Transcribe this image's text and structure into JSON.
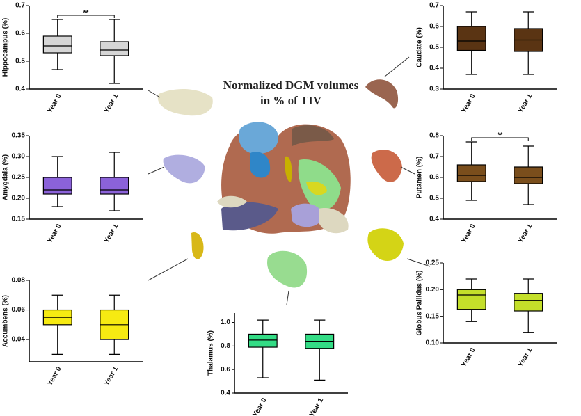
{
  "title": "Normalized DGM volumes in % of TIV",
  "chart_data": [
    {
      "type": "box",
      "y_label": "Hippocampus (%)",
      "categories": [
        "Year 0",
        "Year 1"
      ],
      "color": "#d6d6d6",
      "annotation": "**",
      "ylim": [
        0.4,
        0.7
      ],
      "yticks": [
        0.4,
        0.5,
        0.6,
        0.7
      ],
      "boxes": [
        {
          "min": 0.47,
          "q1": 0.53,
          "median": 0.555,
          "q3": 0.59,
          "max": 0.65
        },
        {
          "min": 0.42,
          "q1": 0.52,
          "median": 0.54,
          "q3": 0.57,
          "max": 0.65
        }
      ]
    },
    {
      "type": "box",
      "y_label": "Caudate (%)",
      "categories": [
        "Year 0",
        "Year 1"
      ],
      "color": "#5a3413",
      "ylim": [
        0.3,
        0.7
      ],
      "yticks": [
        0.3,
        0.4,
        0.5,
        0.6,
        0.7
      ],
      "boxes": [
        {
          "min": 0.37,
          "q1": 0.485,
          "median": 0.53,
          "q3": 0.6,
          "max": 0.67
        },
        {
          "min": 0.37,
          "q1": 0.48,
          "median": 0.535,
          "q3": 0.59,
          "max": 0.67
        }
      ]
    },
    {
      "type": "box",
      "y_label": "Amygdala (%)",
      "categories": [
        "Year 0",
        "Year 1"
      ],
      "color": "#8b62d9",
      "ylim": [
        0.15,
        0.35
      ],
      "yticks": [
        0.15,
        {
          "value": 0.2,
          "label": "0.20"
        },
        0.25,
        {
          "value": 0.3,
          "label": "0.30"
        },
        0.35
      ],
      "boxes": [
        {
          "min": 0.18,
          "q1": 0.21,
          "median": 0.22,
          "q3": 0.25,
          "max": 0.3
        },
        {
          "min": 0.17,
          "q1": 0.21,
          "median": 0.22,
          "q3": 0.25,
          "max": 0.31
        }
      ]
    },
    {
      "type": "box",
      "y_label": "Putamen (%)",
      "categories": [
        "Year 0",
        "Year 1"
      ],
      "color": "#7a4e1c",
      "annotation": "**",
      "ylim": [
        0.4,
        0.8
      ],
      "yticks": [
        0.4,
        0.5,
        0.6,
        0.7,
        0.8
      ],
      "boxes": [
        {
          "min": 0.49,
          "q1": 0.58,
          "median": 0.61,
          "q3": 0.66,
          "max": 0.77
        },
        {
          "min": 0.47,
          "q1": 0.57,
          "median": 0.6,
          "q3": 0.65,
          "max": 0.75
        }
      ]
    },
    {
      "type": "box",
      "y_label": "Accumbens (%)",
      "categories": [
        "Year 0",
        "Year 1"
      ],
      "color": "#f6ea12",
      "ylim": [
        0.025,
        0.08
      ],
      "yticks": [
        0.04,
        0.06,
        0.08
      ],
      "boxes": [
        {
          "min": 0.03,
          "q1": 0.05,
          "median": 0.055,
          "q3": 0.06,
          "max": 0.07
        },
        {
          "min": 0.03,
          "q1": 0.04,
          "median": 0.05,
          "q3": 0.06,
          "max": 0.07
        }
      ]
    },
    {
      "type": "box",
      "y_label": "Thalamus (%)",
      "categories": [
        "Year 0",
        "Year 1"
      ],
      "color": "#33dc85",
      "ylim": [
        0.4,
        1.08
      ],
      "yticks": [
        0.4,
        0.6,
        0.8,
        {
          "value": 1,
          "label": "1.0"
        }
      ],
      "boxes": [
        {
          "min": 0.53,
          "q1": 0.79,
          "median": 0.85,
          "q3": 0.9,
          "max": 1.02
        },
        {
          "min": 0.51,
          "q1": 0.78,
          "median": 0.84,
          "q3": 0.9,
          "max": 1.02
        }
      ]
    },
    {
      "type": "box",
      "y_label": "Globus Pallidus (%)",
      "categories": [
        "Year 0",
        "Year 1"
      ],
      "color": "#c4df2a",
      "ylim": [
        0.1,
        0.25
      ],
      "yticks": [
        {
          "value": 0.1,
          "label": "0.10"
        },
        0.15,
        {
          "value": 0.2,
          "label": "0.20"
        },
        0.25
      ],
      "boxes": [
        {
          "min": 0.14,
          "q1": 0.163,
          "median": 0.19,
          "q3": 0.2,
          "max": 0.22
        },
        {
          "min": 0.12,
          "q1": 0.16,
          "median": 0.18,
          "q3": 0.193,
          "max": 0.22
        }
      ]
    }
  ]
}
